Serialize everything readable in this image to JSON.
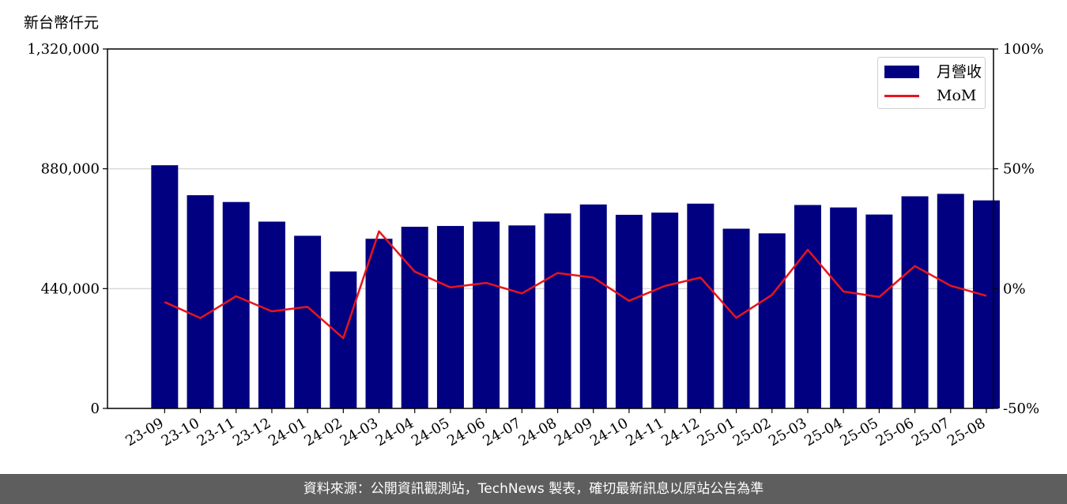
{
  "unit_label": "新台幣仟元",
  "footer_text": "資料來源：公開資訊觀測站，TechNews 製表，確切最新訊息以原站公告為準",
  "colors": {
    "bar": "#000080",
    "line": "#e8141c",
    "grid": "#d9d9d9",
    "footer_bg": "#5e5e5e"
  },
  "chart_data": {
    "type": "bar",
    "categories": [
      "23-09",
      "23-10",
      "23-11",
      "23-12",
      "24-01",
      "24-02",
      "24-03",
      "24-04",
      "24-05",
      "24-06",
      "24-07",
      "24-08",
      "24-09",
      "24-10",
      "24-11",
      "24-12",
      "25-01",
      "25-02",
      "25-03",
      "25-04",
      "25-05",
      "25-06",
      "25-07",
      "25-08"
    ],
    "series": [
      {
        "name": "月營收",
        "type": "bar",
        "axis": "left",
        "values": [
          893000,
          783000,
          758000,
          686000,
          634000,
          503000,
          623000,
          667000,
          670000,
          686000,
          672000,
          716000,
          749000,
          711000,
          719000,
          752000,
          660000,
          643000,
          747000,
          738000,
          712000,
          779000,
          788000,
          764000
        ]
      },
      {
        "name": "MoM",
        "type": "line",
        "axis": "right",
        "values": [
          -5.6,
          -12.3,
          -3.2,
          -9.5,
          -7.6,
          -20.7,
          23.9,
          7.1,
          0.5,
          2.4,
          -2.0,
          6.5,
          4.6,
          -5.1,
          1.1,
          4.6,
          -12.2,
          -2.6,
          16.2,
          -1.2,
          -3.5,
          9.4,
          1.2,
          -3.0
        ]
      }
    ],
    "ylim": [
      0,
      1320000
    ],
    "yticks": [
      0,
      440000,
      880000,
      1320000
    ],
    "ytick_labels": [
      "0",
      "440,000",
      "880,000",
      "1,320,000"
    ],
    "y2lim": [
      -50,
      100
    ],
    "y2ticks": [
      -50,
      0,
      50,
      100
    ],
    "y2tick_labels": [
      "-50%",
      "0%",
      "50%",
      "100%"
    ],
    "grid": true,
    "legend": "top-right",
    "xlabel": "",
    "ylabel": ""
  }
}
